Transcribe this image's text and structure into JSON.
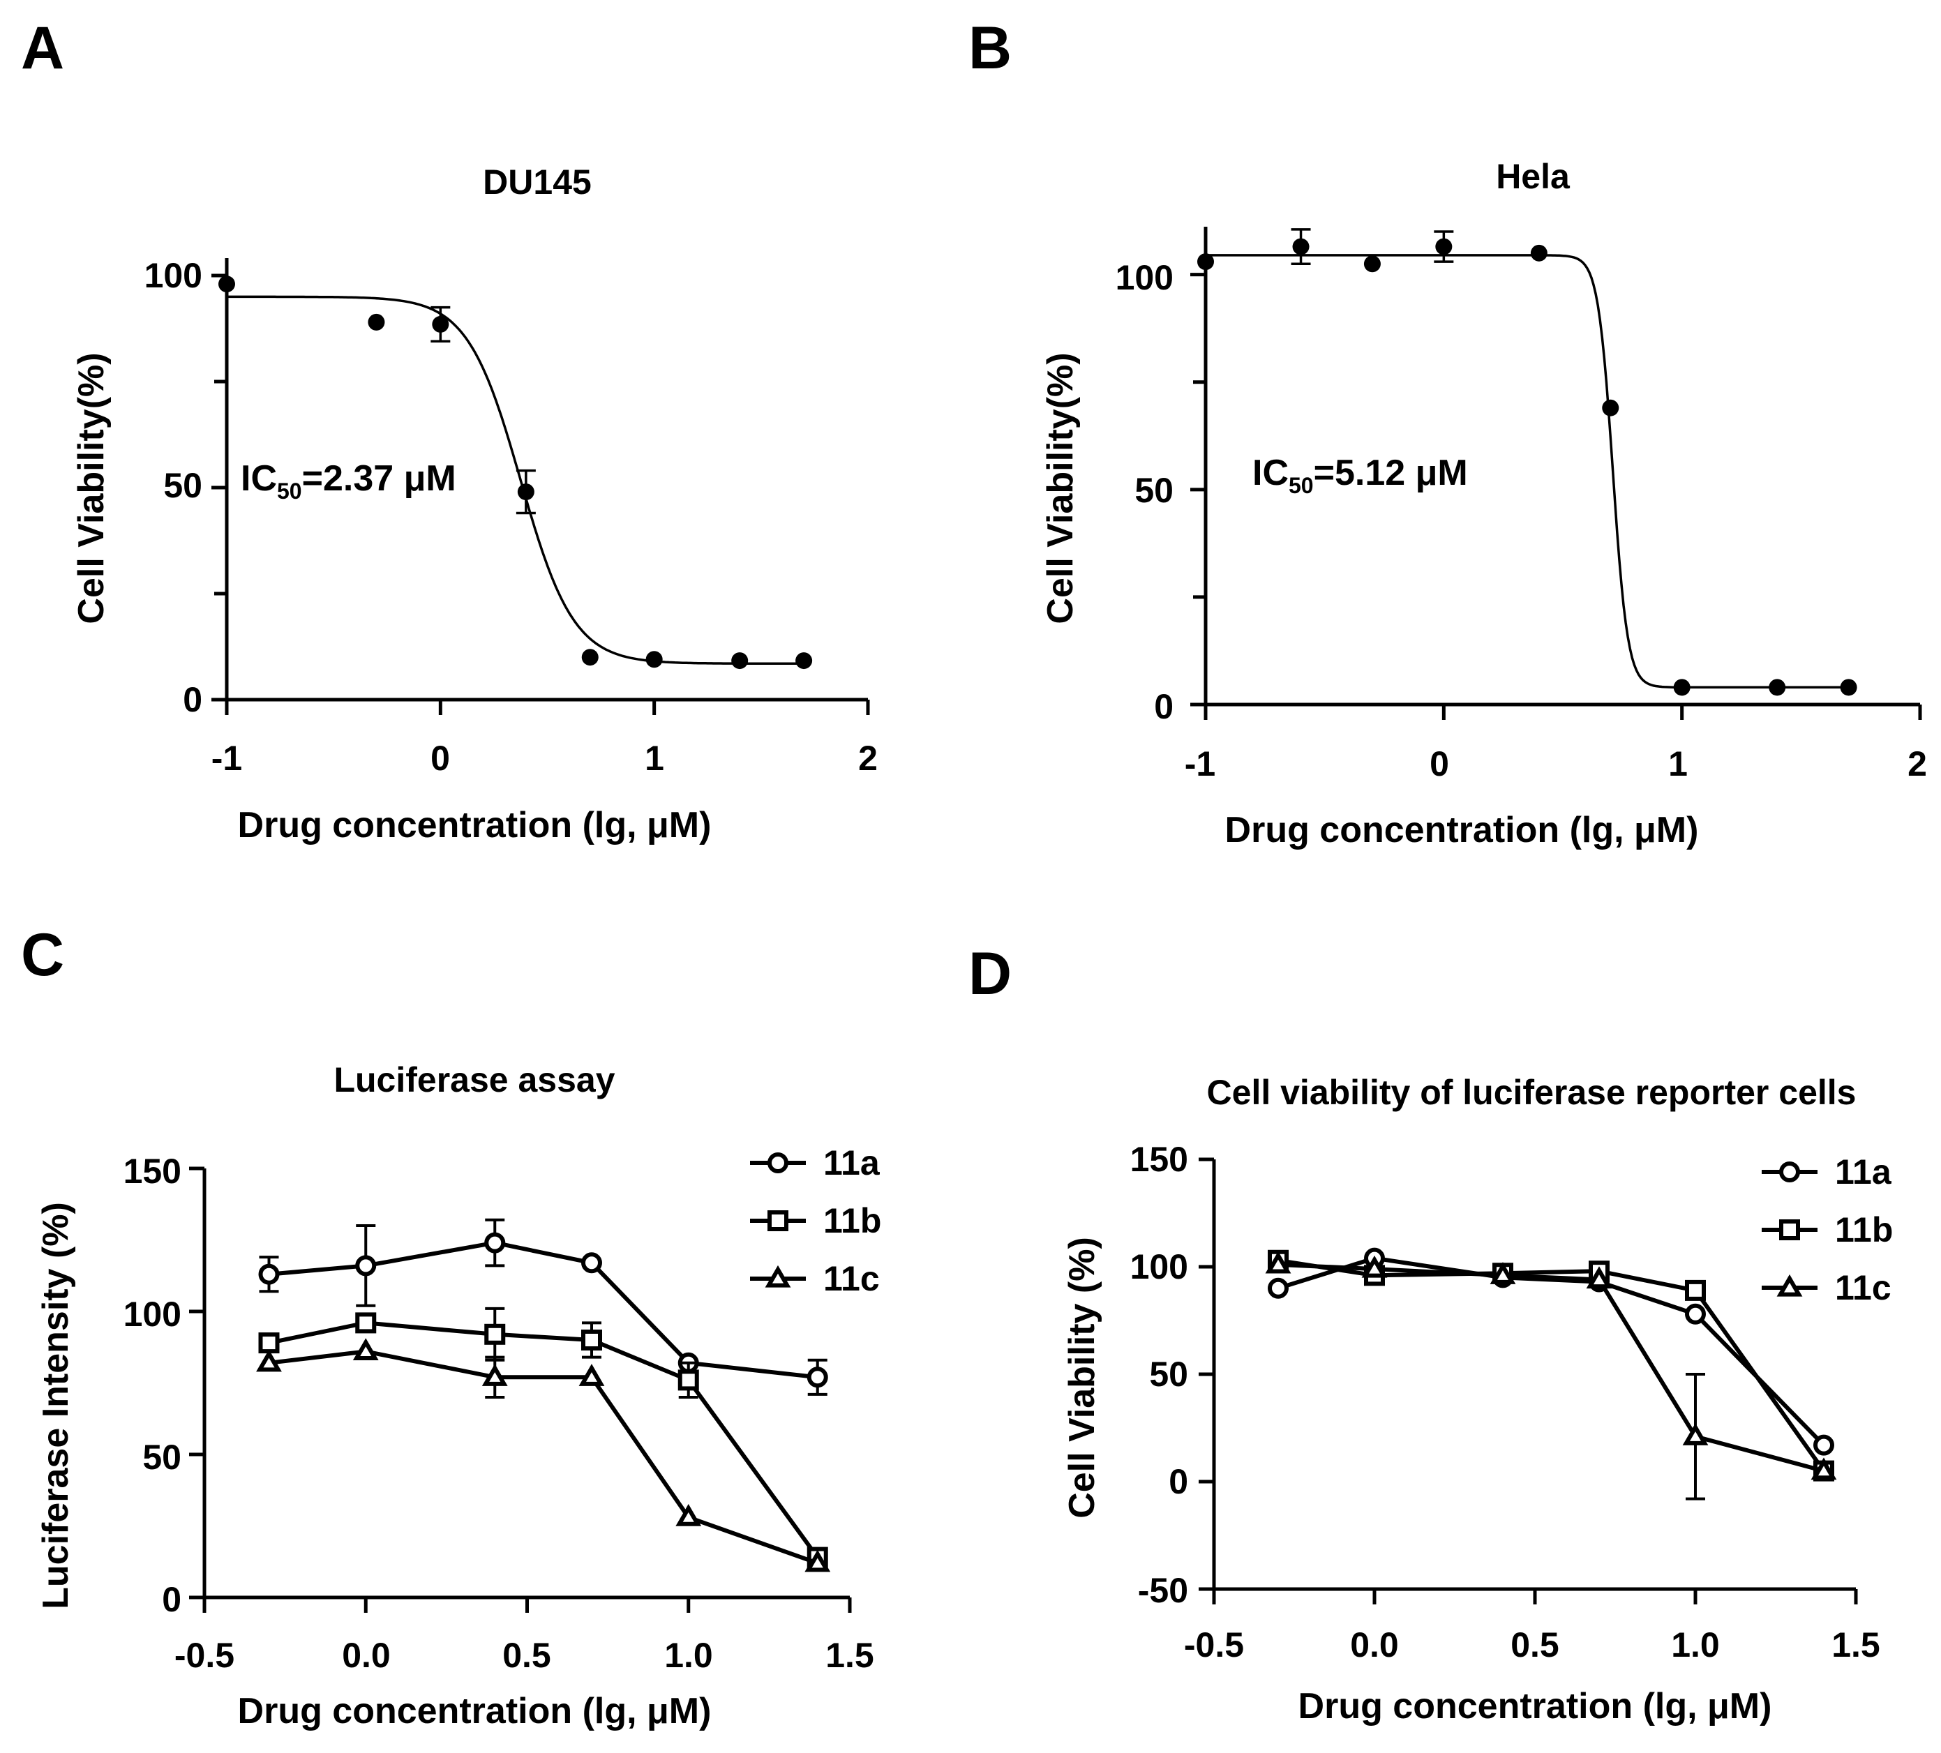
{
  "chart_data": [
    {
      "panel_label": "A",
      "type": "scatter",
      "title": "DU145",
      "xlabel": "Drug concentration (lg, μM)",
      "ylabel": "Cell Viability(%)",
      "xlim": [
        -1,
        2
      ],
      "ylim": [
        0,
        100
      ],
      "xticks": [
        -1,
        0,
        1,
        2
      ],
      "yticks": [
        0,
        50,
        100
      ],
      "xtick_labels": [
        "-1",
        "0",
        "1",
        "2"
      ],
      "ytick_labels": [
        "0",
        "50",
        "100"
      ],
      "annotation": {
        "prefix": "IC",
        "subscript": "50",
        "value": "=2.37 μM"
      },
      "points": [
        {
          "x": -1.0,
          "y": 98.0,
          "err": 0
        },
        {
          "x": -0.3,
          "y": 89.0,
          "err": 0
        },
        {
          "x": 0.0,
          "y": 88.5,
          "err": 4.0
        },
        {
          "x": 0.4,
          "y": 49.0,
          "err": 5.0
        },
        {
          "x": 0.7,
          "y": 10.0,
          "err": 0
        },
        {
          "x": 1.0,
          "y": 9.5,
          "err": 0
        },
        {
          "x": 1.4,
          "y": 9.2,
          "err": 0
        },
        {
          "x": 1.7,
          "y": 9.2,
          "err": 0
        }
      ],
      "fit": {
        "top": 95,
        "bottom": 8.5,
        "logIC50": 0.375,
        "hill": 3.5,
        "x_range": [
          -1,
          1.7
        ]
      }
    },
    {
      "panel_label": "B",
      "type": "scatter",
      "title": "Hela",
      "xlabel": "Drug concentration (lg, μM)",
      "ylabel": "Cell Viability(%)",
      "xlim": [
        -1,
        2
      ],
      "ylim": [
        0,
        110
      ],
      "xticks": [
        -1,
        0,
        1,
        2
      ],
      "yticks": [
        0,
        50,
        100
      ],
      "xtick_labels": [
        "-1",
        "0",
        "1",
        "2"
      ],
      "ytick_labels": [
        "0",
        "50",
        "100"
      ],
      "annotation": {
        "prefix": "IC",
        "subscript": "50",
        "value": "=5.12 μM"
      },
      "points": [
        {
          "x": -1.0,
          "y": 103.0,
          "err": 0
        },
        {
          "x": -0.6,
          "y": 106.5,
          "err": 4.0
        },
        {
          "x": -0.3,
          "y": 102.5,
          "err": 0
        },
        {
          "x": 0.0,
          "y": 106.5,
          "err": 3.5
        },
        {
          "x": 0.4,
          "y": 105.0,
          "err": 0
        },
        {
          "x": 0.7,
          "y": 69.0,
          "err": 0
        },
        {
          "x": 1.0,
          "y": 4.0,
          "err": 0
        },
        {
          "x": 1.4,
          "y": 4.0,
          "err": 0
        },
        {
          "x": 1.7,
          "y": 4.0,
          "err": 0
        }
      ],
      "fit": {
        "top": 104.5,
        "bottom": 4.0,
        "logIC50": 0.71,
        "hill": 14,
        "x_range": [
          -1,
          1.7
        ]
      }
    },
    {
      "panel_label": "C",
      "type": "line",
      "title": "Luciferase assay",
      "xlabel": "Drug concentration (lg, μM)",
      "ylabel": "Luciferase Intensity (%)",
      "xlim": [
        -0.5,
        1.5
      ],
      "ylim": [
        0,
        150
      ],
      "xticks": [
        -0.5,
        0.0,
        0.5,
        1.0,
        1.5
      ],
      "yticks": [
        0,
        50,
        100,
        150
      ],
      "xtick_labels": [
        "-0.5",
        "0.0",
        "0.5",
        "1.0",
        "1.5"
      ],
      "ytick_labels": [
        "0",
        "50",
        "100",
        "150"
      ],
      "x": [
        -0.3,
        0.0,
        0.4,
        0.7,
        1.0,
        1.4
      ],
      "series": [
        {
          "name": "11a",
          "marker": "circle",
          "values": [
            113,
            116,
            124,
            117,
            82,
            77
          ],
          "errors": [
            6,
            14,
            8,
            0,
            0,
            6
          ]
        },
        {
          "name": "11b",
          "marker": "square",
          "values": [
            89,
            96,
            92,
            90,
            76,
            14
          ],
          "errors": [
            0,
            0,
            9,
            6,
            6,
            0
          ]
        },
        {
          "name": "11c",
          "marker": "triangle",
          "values": [
            82,
            86,
            77,
            77,
            28,
            12
          ],
          "errors": [
            0,
            0,
            7,
            0,
            0,
            0
          ]
        }
      ]
    },
    {
      "panel_label": "D",
      "type": "line",
      "title": "Cell viability of luciferase reporter cells",
      "xlabel": "Drug concentration (lg, μM)",
      "ylabel": "Cell Viability (%)",
      "xlim": [
        -0.5,
        1.5
      ],
      "ylim": [
        -50,
        150
      ],
      "xticks": [
        -0.5,
        0.0,
        0.5,
        1.0,
        1.5
      ],
      "yticks": [
        -50,
        0,
        50,
        100,
        150
      ],
      "xtick_labels": [
        "-0.5",
        "0.0",
        "0.5",
        "1.0",
        "1.5"
      ],
      "ytick_labels": [
        "-50",
        "0",
        "50",
        "100",
        "150"
      ],
      "x": [
        -0.3,
        0.0,
        0.4,
        0.7,
        1.0,
        1.4
      ],
      "series": [
        {
          "name": "11a",
          "marker": "circle",
          "values": [
            90,
            104,
            95,
            93,
            78,
            17
          ],
          "errors": [
            0,
            0,
            0,
            0,
            0,
            0
          ]
        },
        {
          "name": "11b",
          "marker": "square",
          "values": [
            103,
            96,
            97,
            98,
            89,
            5
          ],
          "errors": [
            0,
            0,
            0,
            0,
            0,
            0
          ]
        },
        {
          "name": "11c",
          "marker": "triangle",
          "values": [
            101,
            99,
            96,
            94,
            21,
            5
          ],
          "errors": [
            0,
            0,
            0,
            0,
            29,
            0
          ]
        }
      ]
    }
  ]
}
